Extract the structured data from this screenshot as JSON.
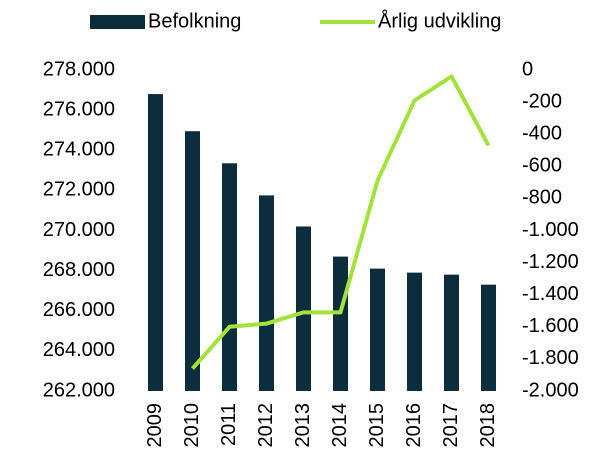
{
  "chart_data": {
    "type": "bar_line",
    "categories": [
      "2009",
      "2010",
      "2011",
      "2012",
      "2013",
      "2014",
      "2015",
      "2016",
      "2017",
      "2018"
    ],
    "series": [
      {
        "name": "Befolkning",
        "type": "bar",
        "color": "#0c2d3c",
        "axis": "y",
        "values": [
          276800,
          274950,
          273350,
          271750,
          270200,
          268700,
          268100,
          267900,
          267800,
          267300
        ]
      },
      {
        "name": "Årlig udvikling",
        "type": "line",
        "color": "#a3e23c",
        "axis": "y2",
        "values": [
          null,
          -1860,
          -1600,
          -1580,
          -1510,
          -1510,
          -690,
          -190,
          -40,
          -470
        ]
      }
    ],
    "ylim": [
      262000,
      278000
    ],
    "yticks": [
      {
        "value": 262000,
        "label": "262.000"
      },
      {
        "value": 264000,
        "label": "264.000"
      },
      {
        "value": 266000,
        "label": "266.000"
      },
      {
        "value": 268000,
        "label": "268.000"
      },
      {
        "value": 270000,
        "label": "270.000"
      },
      {
        "value": 272000,
        "label": "272.000"
      },
      {
        "value": 274000,
        "label": "274.000"
      },
      {
        "value": 276000,
        "label": "276.000"
      },
      {
        "value": 278000,
        "label": "278.000"
      }
    ],
    "y2lim": [
      -2000,
      0
    ],
    "y2ticks": [
      {
        "value": -2000,
        "label": "-2.000"
      },
      {
        "value": -1800,
        "label": "-1.800"
      },
      {
        "value": -1600,
        "label": "-1.600"
      },
      {
        "value": -1400,
        "label": "-1.400"
      },
      {
        "value": -1200,
        "label": "-1.200"
      },
      {
        "value": -1000,
        "label": "-1.000"
      },
      -800,
      -600,
      -400,
      -200,
      0
    ],
    "legend": "top",
    "grid": false
  }
}
